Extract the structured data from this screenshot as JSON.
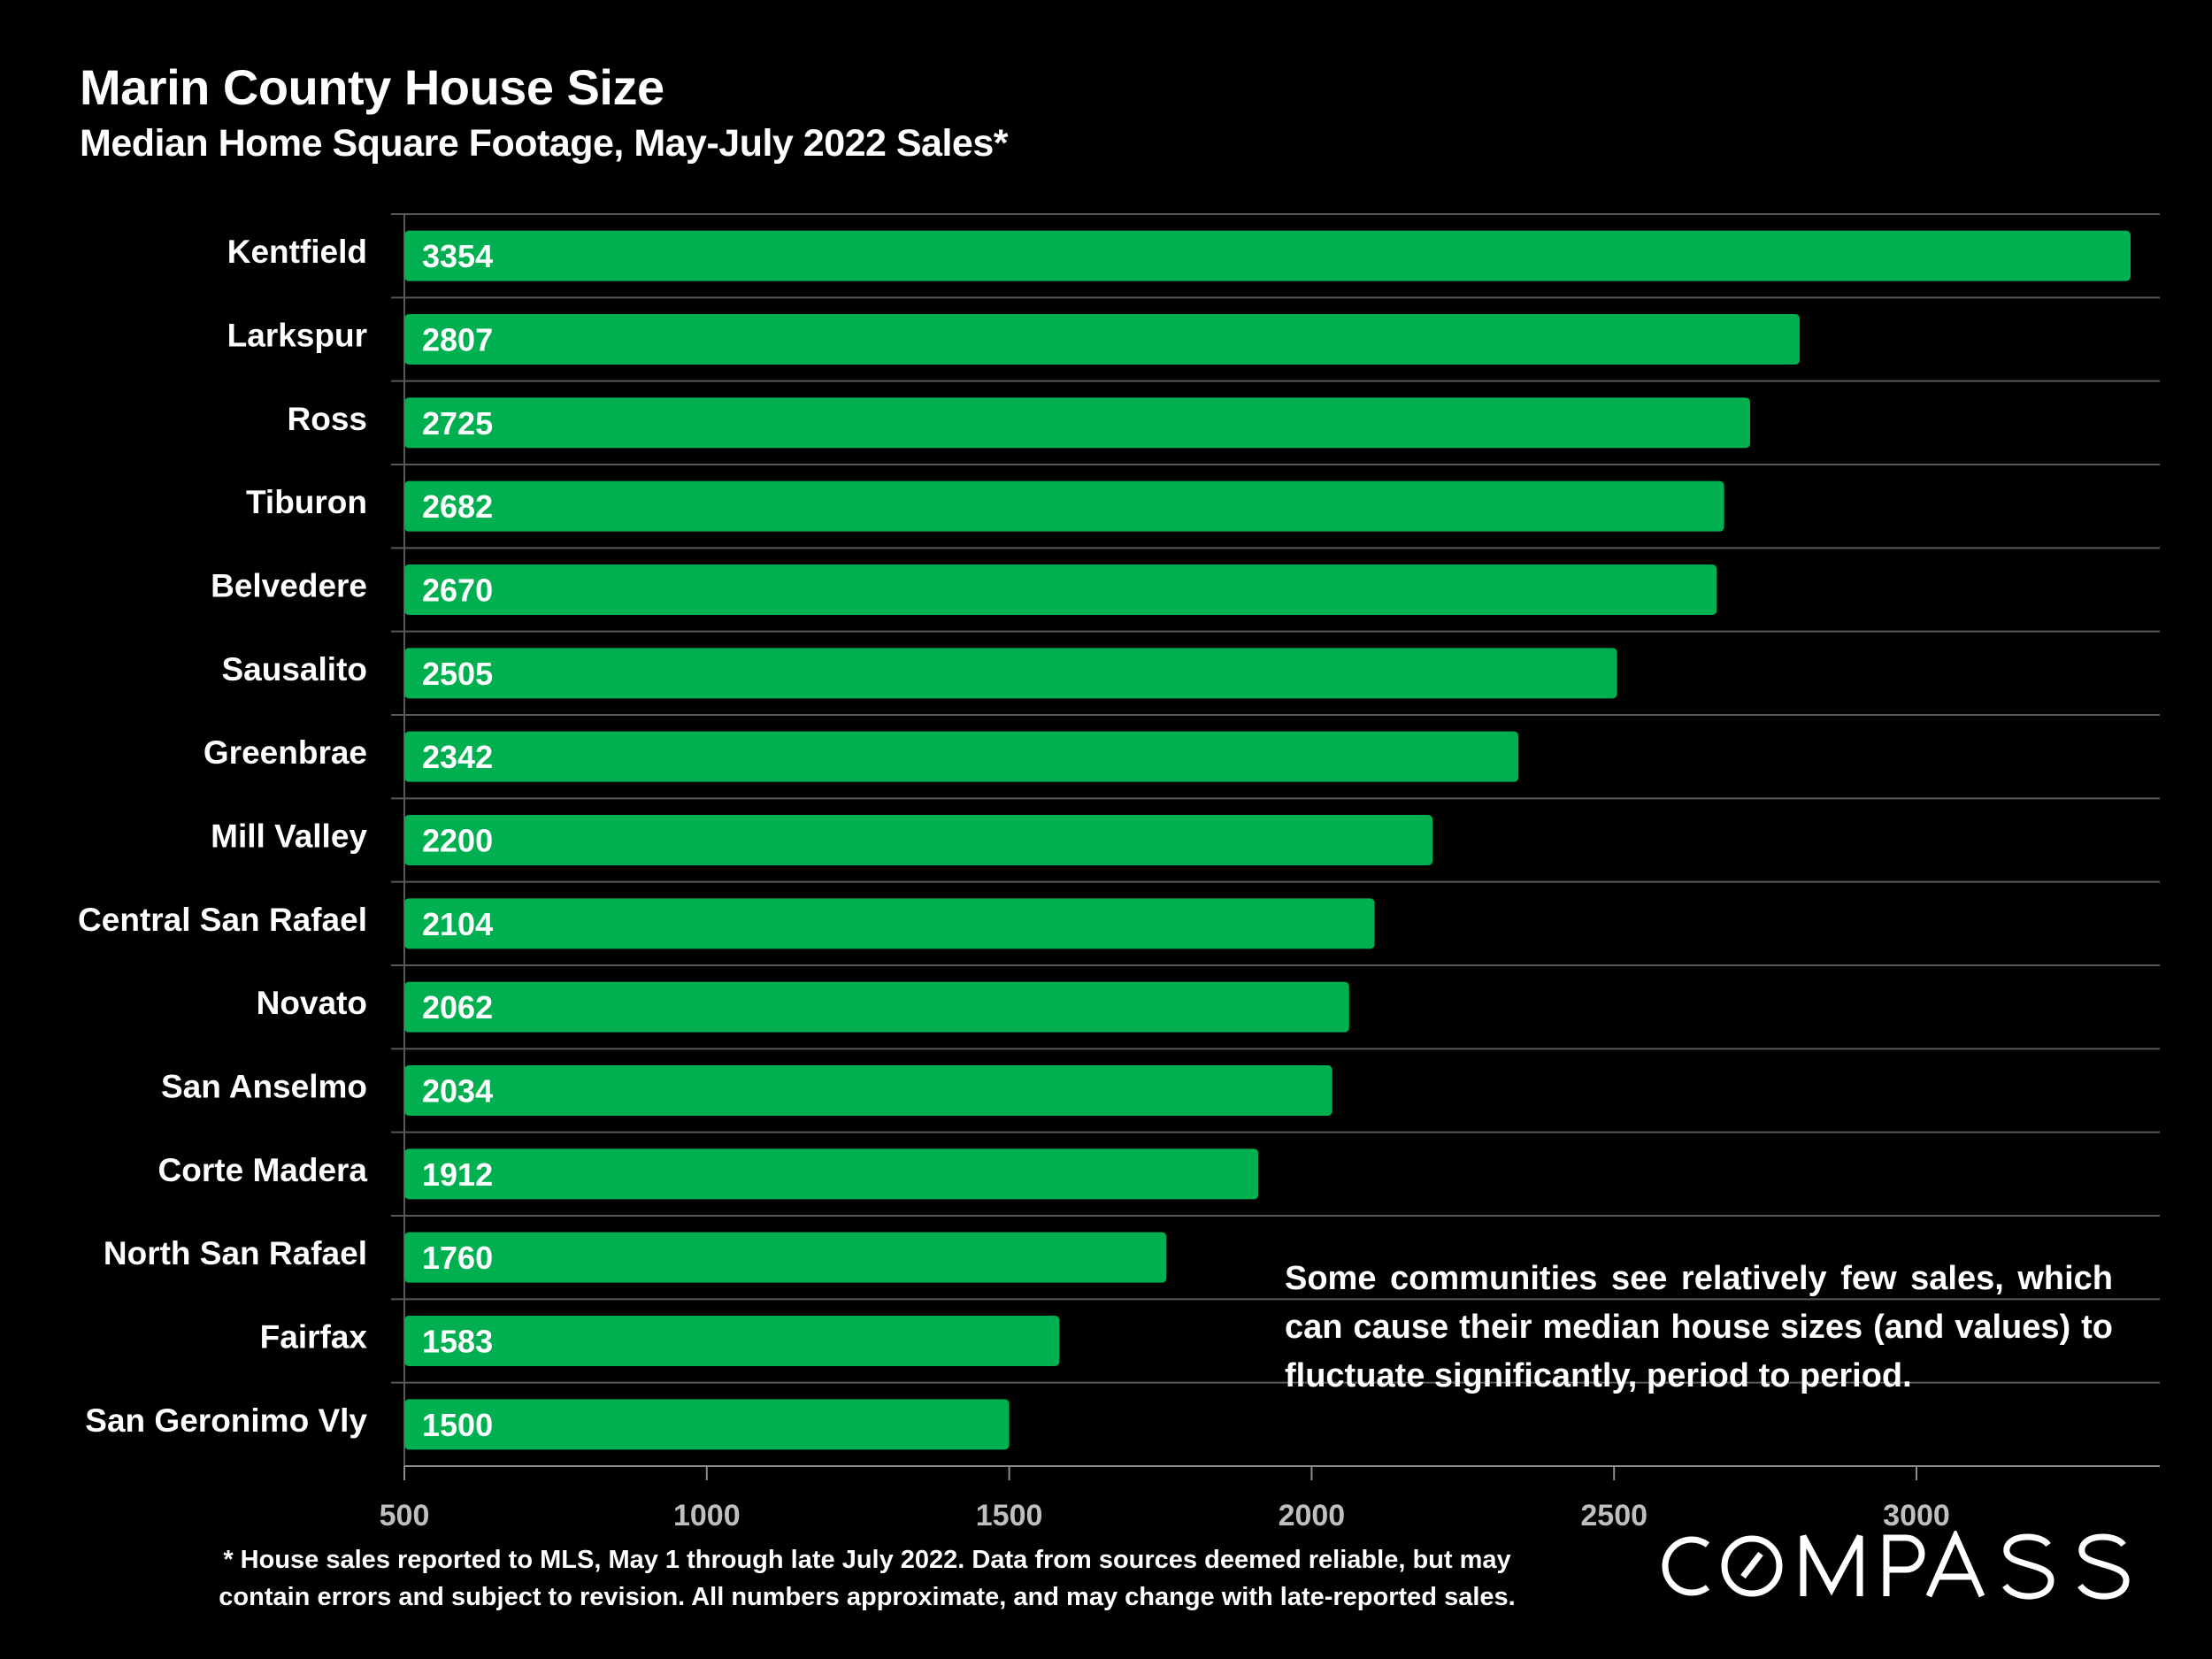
{
  "chart_data": {
    "type": "bar",
    "orientation": "horizontal",
    "title": "Marin County House Size",
    "subtitle": "Median Home Square Footage, May-July 2022 Sales*",
    "categories": [
      "Kentfield",
      "Larkspur",
      "Ross",
      "Tiburon",
      "Belvedere",
      "Sausalito",
      "Greenbrae",
      "Mill Valley",
      "Central San Rafael",
      "Novato",
      "San Anselmo",
      "Corte Madera",
      "North San Rafael",
      "Fairfax",
      "San Geronimo Vly"
    ],
    "values": [
      3354,
      2807,
      2725,
      2682,
      2670,
      2505,
      2342,
      2200,
      2104,
      2062,
      2034,
      1912,
      1760,
      1583,
      1500
    ],
    "xlim": [
      500,
      3400
    ],
    "xticks": [
      "500",
      "1000",
      "1500",
      "2000",
      "2500",
      "3000"
    ],
    "xlabel": "",
    "ylabel": "",
    "grid": "horizontal separators",
    "data_labels": true,
    "colors": {
      "bar": "#00B050",
      "background": "#000000",
      "tick_label": "#BFBFBF",
      "grid": "#595959"
    }
  },
  "annotation": "Some communities see relatively few sales, which can cause their median house sizes (and values) to fluctuate significantly, period to period.",
  "footnote_lines": [
    "* House sales reported to MLS, May 1 through late July 2022. Data from sources deemed reliable, but may",
    "contain errors and subject to revision. All numbers approximate, and may change with late-reported sales."
  ],
  "logo": "COMPASS"
}
